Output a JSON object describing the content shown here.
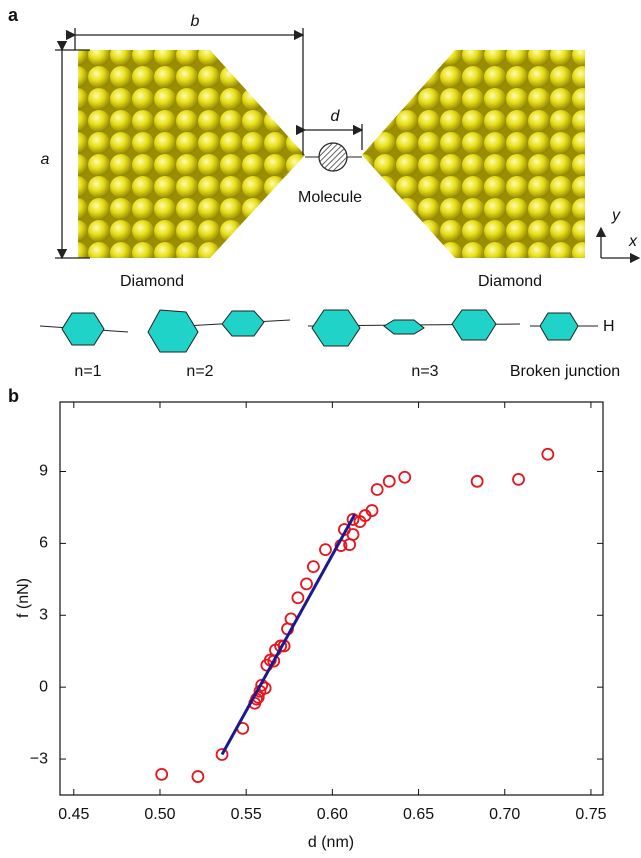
{
  "panel_a": {
    "label": "a",
    "dim_b": "b",
    "dim_a": "a",
    "dim_d": "d",
    "molecule": "Molecule",
    "left": "Diamond",
    "right": "Diamond",
    "axis_y": "y",
    "axis_x": "x",
    "n1": "n=1",
    "n2": "n=2",
    "n3": "n=3",
    "broken": "Broken junction",
    "h": "H"
  },
  "chart_data": {
    "type": "scatter",
    "panel_label": "b",
    "xlabel": "d (nm)",
    "ylabel": "f (nN)",
    "xlim": [
      0.442,
      0.757
    ],
    "ylim": [
      -4.5,
      11.9
    ],
    "xticks": [
      0.45,
      {
        "value": 0.5,
        "label": "0.50"
      },
      0.55,
      {
        "value": 0.6,
        "label": "0.60"
      },
      0.65,
      {
        "value": 0.7,
        "label": "0.70"
      },
      0.75
    ],
    "yticks": [
      {
        "value": -3,
        "label": "−3"
      },
      0,
      3,
      6,
      9
    ],
    "series": [
      {
        "color": "#e8141c",
        "x": [
          0.501,
          0.522,
          0.536,
          0.548,
          0.555,
          0.556,
          0.557,
          0.558,
          0.559,
          0.561,
          0.562,
          0.564,
          0.566,
          0.567,
          0.57,
          0.572,
          0.574,
          0.576,
          0.58,
          0.585,
          0.589,
          0.596,
          0.605,
          0.607,
          0.61,
          0.612,
          0.612,
          0.616,
          0.619,
          0.623,
          0.626,
          0.633,
          0.642,
          0.684,
          0.708,
          0.725
        ],
        "values": [
          -3.64,
          -3.73,
          -2.81,
          -1.72,
          -0.67,
          -0.5,
          -0.42,
          -0.17,
          0.08,
          -0.04,
          0.92,
          1.13,
          1.09,
          1.55,
          1.72,
          1.72,
          2.43,
          2.85,
          3.73,
          4.31,
          5.03,
          5.74,
          5.91,
          6.58,
          5.95,
          7.0,
          6.37,
          6.91,
          7.16,
          7.37,
          8.25,
          8.59,
          8.76,
          8.59,
          8.67,
          9.72
        ]
      },
      {
        "color": "#1a1a8c",
        "style": "line",
        "x": [
          0.536,
          0.613
        ],
        "values": [
          -2.81,
          7.21
        ]
      }
    ]
  }
}
